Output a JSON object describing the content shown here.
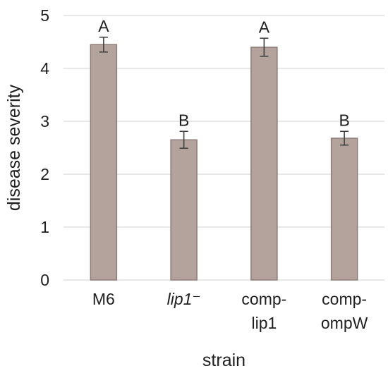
{
  "chart_data": {
    "type": "bar",
    "categories": [
      [
        "M6"
      ],
      [
        "lip1⁻"
      ],
      [
        "comp-",
        "lip1"
      ],
      [
        "comp-",
        "ompW"
      ]
    ],
    "values": [
      4.45,
      2.65,
      4.4,
      2.68
    ],
    "errors": [
      0.14,
      0.16,
      0.17,
      0.13
    ],
    "significance_letters": [
      "A",
      "B",
      "A",
      "B"
    ],
    "xlabel": "strain",
    "ylabel": "disease severity",
    "yticks": [
      "0",
      "1",
      "2",
      "3",
      "4",
      "5"
    ],
    "ylim": [
      0,
      5
    ],
    "grid": true,
    "legend": "none",
    "colors": {
      "bar_fill": "#b3a39c",
      "bar_stroke": "#8c7b76",
      "grid": "#d9d9d9",
      "axis": "#d9d9d9",
      "error_bar": "#404040",
      "text": "#1f1f1f"
    }
  }
}
